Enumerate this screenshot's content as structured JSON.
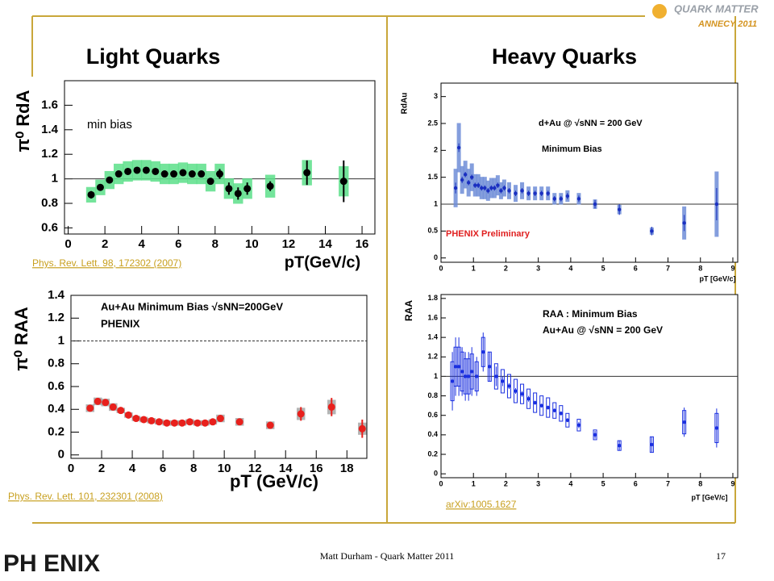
{
  "slide": {
    "left_heading": "Light Quarks",
    "right_heading": "Heavy Quarks",
    "logo_top": "QUARK MATTER",
    "logo_top_sub": "ANNECY 2011",
    "logo_bottom": "PH ENIX",
    "footer": "Matt Durham - Quark Matter 2011",
    "page_number": "17",
    "links": [
      "Phys. Rev. Lett. 98, 172302 (2007)",
      "Phys. Rev. Lett. 101, 232301 (2008)",
      "arXiv:1005.1627"
    ]
  },
  "chart_data": [
    {
      "type": "scatter",
      "ylabel": "π⁰ RdA",
      "xlabel": "pT(GeV/c)",
      "annotations": [
        "min bias"
      ],
      "xlim": [
        -0.2,
        16.7
      ],
      "ylim": [
        0.55,
        1.8
      ],
      "xticks": [
        0,
        2,
        4,
        6,
        8,
        10,
        12,
        14,
        16
      ],
      "yticks": [
        0.6,
        0.8,
        1,
        1.2,
        1.4,
        1.6
      ],
      "reference_line": 1,
      "series": [
        {
          "color": "#000000",
          "sys_color": "#5ce08a",
          "sys_style": "fill",
          "x": [
            1.25,
            1.75,
            2.25,
            2.75,
            3.25,
            3.75,
            4.25,
            4.75,
            5.25,
            5.75,
            6.25,
            6.75,
            7.25,
            7.75,
            8.25,
            8.75,
            9.25,
            9.75,
            11,
            13,
            15
          ],
          "values": [
            0.87,
            0.93,
            0.99,
            1.04,
            1.06,
            1.07,
            1.07,
            1.06,
            1.04,
            1.04,
            1.05,
            1.04,
            1.04,
            0.98,
            1.04,
            0.92,
            0.88,
            0.92,
            0.94,
            1.05,
            0.98
          ],
          "errors": [
            0.03,
            0.02,
            0.02,
            0.02,
            0.02,
            0.02,
            0.02,
            0.02,
            0.02,
            0.02,
            0.02,
            0.02,
            0.02,
            0.02,
            0.04,
            0.05,
            0.05,
            0.05,
            0.04,
            0.1,
            0.17
          ],
          "sys": [
            0.06,
            0.06,
            0.07,
            0.08,
            0.08,
            0.08,
            0.08,
            0.08,
            0.08,
            0.08,
            0.08,
            0.08,
            0.08,
            0.08,
            0.08,
            0.08,
            0.08,
            0.08,
            0.09,
            0.1,
            0.12
          ]
        }
      ]
    },
    {
      "type": "scatter",
      "ylabel": "π⁰ RAA",
      "xlabel": "pT (GeV/c)",
      "annotations": [
        "Au+Au Minimum Bias √sNN=200GeV",
        "PHENIX"
      ],
      "xlim": [
        0,
        19.3
      ],
      "ylim": [
        -0.03,
        1.4
      ],
      "xticks": [
        0,
        2,
        4,
        6,
        8,
        10,
        12,
        14,
        16,
        18
      ],
      "yticks": [
        0,
        0.2,
        0.4,
        0.6,
        0.8,
        1,
        1.2,
        1.4
      ],
      "reference_line": 1,
      "series": [
        {
          "color": "#e8201c",
          "sys_color": "#a8a8a8",
          "sys_style": "fill",
          "x": [
            1.25,
            1.75,
            2.25,
            2.75,
            3.25,
            3.75,
            4.25,
            4.75,
            5.25,
            5.75,
            6.25,
            6.75,
            7.25,
            7.75,
            8.25,
            8.75,
            9.25,
            9.75,
            11,
            13,
            15,
            17,
            19
          ],
          "values": [
            0.41,
            0.47,
            0.46,
            0.42,
            0.39,
            0.35,
            0.32,
            0.31,
            0.3,
            0.29,
            0.28,
            0.28,
            0.28,
            0.29,
            0.28,
            0.28,
            0.29,
            0.32,
            0.29,
            0.26,
            0.36,
            0.42,
            0.23
          ],
          "errors": [
            0.01,
            0.01,
            0.01,
            0.01,
            0.01,
            0.01,
            0.01,
            0.01,
            0.01,
            0.01,
            0.01,
            0.01,
            0.01,
            0.01,
            0.01,
            0.01,
            0.01,
            0.02,
            0.02,
            0.03,
            0.06,
            0.08,
            0.08
          ],
          "sys": [
            0.03,
            0.03,
            0.03,
            0.03,
            0.02,
            0.02,
            0.02,
            0.02,
            0.02,
            0.02,
            0.02,
            0.02,
            0.02,
            0.02,
            0.02,
            0.02,
            0.02,
            0.03,
            0.03,
            0.03,
            0.05,
            0.06,
            0.05
          ]
        }
      ]
    },
    {
      "type": "scatter",
      "ylabel": "RdAu",
      "xlabel": "pT [GeV/c]",
      "annotations": [
        "d+Au @ √sNN = 200 GeV",
        "Minimum Bias",
        "PHENIX Preliminary"
      ],
      "xlim": [
        0,
        9.15
      ],
      "ylim": [
        -0.08,
        3.25
      ],
      "xticks": [
        0,
        1,
        2,
        3,
        4,
        5,
        6,
        7,
        8,
        9
      ],
      "yticks": [
        0,
        0.5,
        1,
        1.5,
        2,
        2.5,
        3
      ],
      "reference_line": 1,
      "series": [
        {
          "color": "#1a2fc0",
          "sys_color": "#6f8ed8",
          "sys_style": "fill",
          "x": [
            0.45,
            0.55,
            0.65,
            0.75,
            0.85,
            0.95,
            1.05,
            1.15,
            1.25,
            1.35,
            1.45,
            1.55,
            1.65,
            1.75,
            1.85,
            1.95,
            2.1,
            2.3,
            2.5,
            2.7,
            2.9,
            3.1,
            3.3,
            3.5,
            3.7,
            3.9,
            4.25,
            4.75,
            5.5,
            6.5,
            7.5,
            8.5
          ],
          "values": [
            1.3,
            2.05,
            1.45,
            1.55,
            1.4,
            1.5,
            1.35,
            1.35,
            1.3,
            1.3,
            1.25,
            1.3,
            1.3,
            1.35,
            1.25,
            1.3,
            1.25,
            1.2,
            1.25,
            1.2,
            1.2,
            1.2,
            1.2,
            1.1,
            1.1,
            1.15,
            1.1,
            1.0,
            0.9,
            0.5,
            0.65,
            1.0
          ],
          "errors": [
            0.1,
            0.08,
            0.06,
            0.05,
            0.05,
            0.05,
            0.05,
            0.05,
            0.05,
            0.05,
            0.05,
            0.05,
            0.05,
            0.05,
            0.05,
            0.05,
            0.05,
            0.05,
            0.05,
            0.05,
            0.05,
            0.05,
            0.05,
            0.05,
            0.05,
            0.06,
            0.06,
            0.08,
            0.1,
            0.08,
            0.15,
            0.3
          ],
          "sys": [
            0.35,
            0.45,
            0.25,
            0.25,
            0.25,
            0.25,
            0.2,
            0.2,
            0.2,
            0.2,
            0.18,
            0.18,
            0.18,
            0.18,
            0.15,
            0.15,
            0.15,
            0.15,
            0.15,
            0.12,
            0.12,
            0.12,
            0.12,
            0.1,
            0.1,
            0.1,
            0.1,
            0.08,
            0.08,
            0.06,
            0.3,
            0.6
          ]
        }
      ]
    },
    {
      "type": "scatter",
      "ylabel": "RAA",
      "xlabel": "pT [GeV/c]",
      "annotations": [
        "RAA : Minimum Bias",
        "Au+Au @ √sNN = 200 GeV"
      ],
      "xlim": [
        0,
        9.15
      ],
      "ylim": [
        -0.04,
        1.84
      ],
      "xticks": [
        0,
        1,
        2,
        3,
        4,
        5,
        6,
        7,
        8,
        9
      ],
      "yticks": [
        0,
        0.2,
        0.4,
        0.6,
        0.8,
        1,
        1.2,
        1.4,
        1.6,
        1.8
      ],
      "reference_line": 1,
      "series": [
        {
          "color": "#1a2fe0",
          "sys_color": "#1a2fe0",
          "sys_style": "outline",
          "x": [
            0.35,
            0.45,
            0.55,
            0.65,
            0.75,
            0.85,
            0.95,
            1.1,
            1.3,
            1.5,
            1.7,
            1.9,
            2.1,
            2.3,
            2.5,
            2.7,
            2.9,
            3.1,
            3.3,
            3.5,
            3.7,
            3.9,
            4.25,
            4.75,
            5.5,
            6.5,
            7.5,
            8.5
          ],
          "values": [
            0.95,
            1.1,
            1.1,
            1.05,
            1.0,
            1.0,
            1.05,
            1.0,
            1.25,
            1.1,
            1.0,
            0.95,
            0.9,
            0.85,
            0.82,
            0.77,
            0.73,
            0.7,
            0.68,
            0.65,
            0.62,
            0.55,
            0.5,
            0.4,
            0.29,
            0.3,
            0.53,
            0.47
          ],
          "errors": [
            0.3,
            0.3,
            0.3,
            0.25,
            0.25,
            0.25,
            0.25,
            0.2,
            0.2,
            0.15,
            0.1,
            0.05,
            0.03,
            0.03,
            0.03,
            0.03,
            0.02,
            0.02,
            0.02,
            0.02,
            0.02,
            0.02,
            0.03,
            0.04,
            0.05,
            0.08,
            0.15,
            0.2
          ],
          "sys": [
            0.2,
            0.2,
            0.2,
            0.2,
            0.18,
            0.18,
            0.18,
            0.15,
            0.15,
            0.15,
            0.13,
            0.12,
            0.12,
            0.12,
            0.1,
            0.1,
            0.1,
            0.1,
            0.1,
            0.08,
            0.08,
            0.07,
            0.06,
            0.05,
            0.05,
            0.08,
            0.12,
            0.15
          ]
        }
      ]
    }
  ]
}
